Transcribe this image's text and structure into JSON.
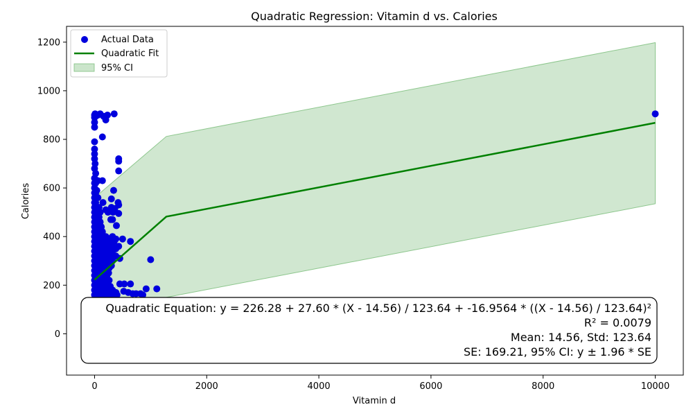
{
  "chart_data": {
    "type": "scatter",
    "title": "Quadratic Regression: Vitamin d vs. Calories",
    "xlabel": "Vitamin d",
    "ylabel": "Calories",
    "xlim": [
      -500,
      10500
    ],
    "ylim": [
      -170,
      1265
    ],
    "xticks": [
      0,
      2000,
      4000,
      6000,
      8000,
      10000
    ],
    "yticks": [
      0,
      200,
      400,
      600,
      800,
      1000,
      1200
    ],
    "grid": false,
    "legend_position": "top-left",
    "legend": [
      "Actual Data",
      "Quadratic Fit",
      "95% CI"
    ],
    "colors": {
      "scatter": "#0000dd",
      "fit": "#008000",
      "ci": "#a9d4a9"
    },
    "series": [
      {
        "name": "Actual Data",
        "type": "scatter",
        "points": [
          [
            0,
            900
          ],
          [
            0,
            890
          ],
          [
            0,
            870
          ],
          [
            0,
            850
          ],
          [
            10,
            905
          ],
          [
            20,
            895
          ],
          [
            60,
            900
          ],
          [
            100,
            905
          ],
          [
            160,
            895
          ],
          [
            200,
            880
          ],
          [
            230,
            900
          ],
          [
            350,
            905
          ],
          [
            140,
            810
          ],
          [
            0,
            790
          ],
          [
            0,
            760
          ],
          [
            0,
            740
          ],
          [
            0,
            720
          ],
          [
            10,
            700
          ],
          [
            0,
            680
          ],
          [
            20,
            660
          ],
          [
            0,
            640
          ],
          [
            0,
            620
          ],
          [
            60,
            630
          ],
          [
            140,
            630
          ],
          [
            430,
            720
          ],
          [
            430,
            710
          ],
          [
            430,
            670
          ],
          [
            340,
            590
          ],
          [
            300,
            555
          ],
          [
            150,
            540
          ],
          [
            420,
            540
          ],
          [
            430,
            530
          ],
          [
            300,
            520
          ],
          [
            360,
            515
          ],
          [
            200,
            510
          ],
          [
            240,
            500
          ],
          [
            330,
            500
          ],
          [
            430,
            495
          ],
          [
            290,
            470
          ],
          [
            320,
            470
          ],
          [
            390,
            445
          ],
          [
            20,
            460
          ],
          [
            40,
            440
          ],
          [
            100,
            430
          ],
          [
            140,
            420
          ],
          [
            60,
            410
          ],
          [
            200,
            400
          ],
          [
            300,
            395
          ],
          [
            350,
            380
          ],
          [
            500,
            390
          ],
          [
            640,
            380
          ],
          [
            430,
            360
          ],
          [
            300,
            355
          ],
          [
            50,
            350
          ],
          [
            150,
            340
          ],
          [
            250,
            330
          ],
          [
            350,
            320
          ],
          [
            450,
            310
          ],
          [
            100,
            300
          ],
          [
            200,
            290
          ],
          [
            300,
            280
          ],
          [
            50,
            270
          ],
          [
            150,
            260
          ],
          [
            250,
            250
          ],
          [
            80,
            240
          ],
          [
            180,
            230
          ],
          [
            30,
            220
          ],
          [
            130,
            210
          ],
          [
            220,
            200
          ],
          [
            450,
            205
          ],
          [
            530,
            205
          ],
          [
            640,
            205
          ],
          [
            280,
            195
          ],
          [
            200,
            185
          ],
          [
            920,
            185
          ],
          [
            1110,
            185
          ],
          [
            520,
            175
          ],
          [
            600,
            170
          ],
          [
            680,
            165
          ],
          [
            740,
            165
          ],
          [
            820,
            165
          ],
          [
            400,
            160
          ],
          [
            300,
            160
          ],
          [
            860,
            160
          ],
          [
            1000,
            305
          ],
          [
            10000,
            905
          ],
          [
            0,
            600
          ],
          [
            0,
            580
          ],
          [
            0,
            560
          ],
          [
            0,
            540
          ],
          [
            0,
            520
          ],
          [
            0,
            500
          ],
          [
            0,
            480
          ],
          [
            0,
            460
          ],
          [
            0,
            440
          ],
          [
            0,
            420
          ],
          [
            0,
            400
          ],
          [
            0,
            380
          ],
          [
            0,
            360
          ],
          [
            0,
            340
          ],
          [
            0,
            320
          ],
          [
            0,
            300
          ],
          [
            0,
            280
          ],
          [
            0,
            260
          ],
          [
            0,
            240
          ],
          [
            0,
            220
          ],
          [
            0,
            200
          ],
          [
            0,
            180
          ],
          [
            0,
            160
          ],
          [
            40,
            590
          ],
          [
            40,
            560
          ],
          [
            40,
            520
          ],
          [
            40,
            500
          ],
          [
            40,
            480
          ],
          [
            40,
            400
          ],
          [
            40,
            380
          ],
          [
            40,
            360
          ],
          [
            40,
            340
          ],
          [
            40,
            320
          ],
          [
            40,
            300
          ],
          [
            40,
            280
          ],
          [
            40,
            260
          ],
          [
            40,
            240
          ],
          [
            40,
            220
          ],
          [
            40,
            200
          ],
          [
            40,
            180
          ],
          [
            40,
            160
          ],
          [
            80,
            520
          ],
          [
            80,
            480
          ],
          [
            80,
            440
          ],
          [
            80,
            400
          ],
          [
            80,
            370
          ],
          [
            80,
            350
          ],
          [
            80,
            330
          ],
          [
            80,
            310
          ],
          [
            80,
            290
          ],
          [
            80,
            270
          ],
          [
            80,
            250
          ],
          [
            80,
            230
          ],
          [
            80,
            210
          ],
          [
            80,
            190
          ],
          [
            80,
            170
          ],
          [
            120,
            440
          ],
          [
            120,
            400
          ],
          [
            120,
            380
          ],
          [
            120,
            360
          ],
          [
            120,
            340
          ],
          [
            120,
            320
          ],
          [
            120,
            300
          ],
          [
            120,
            280
          ],
          [
            120,
            260
          ],
          [
            120,
            240
          ],
          [
            120,
            220
          ],
          [
            120,
            200
          ],
          [
            120,
            180
          ],
          [
            120,
            160
          ],
          [
            170,
            390
          ],
          [
            170,
            370
          ],
          [
            170,
            350
          ],
          [
            170,
            320
          ],
          [
            170,
            290
          ],
          [
            170,
            270
          ],
          [
            170,
            250
          ],
          [
            170,
            210
          ],
          [
            170,
            180
          ],
          [
            170,
            160
          ],
          [
            220,
            390
          ],
          [
            220,
            360
          ],
          [
            220,
            330
          ],
          [
            220,
            300
          ],
          [
            220,
            270
          ],
          [
            220,
            240
          ],
          [
            220,
            180
          ],
          [
            220,
            160
          ],
          [
            260,
            380
          ],
          [
            260,
            350
          ],
          [
            260,
            310
          ],
          [
            260,
            270
          ],
          [
            260,
            220
          ],
          [
            260,
            170
          ],
          [
            320,
            400
          ],
          [
            320,
            370
          ],
          [
            320,
            340
          ],
          [
            320,
            300
          ],
          [
            320,
            180
          ],
          [
            380,
            390
          ],
          [
            380,
            350
          ],
          [
            380,
            320
          ],
          [
            380,
            170
          ],
          [
            20,
            620
          ],
          [
            20,
            580
          ],
          [
            20,
            540
          ],
          [
            20,
            500
          ],
          [
            20,
            470
          ],
          [
            20,
            430
          ],
          [
            20,
            390
          ],
          [
            20,
            350
          ],
          [
            20,
            310
          ],
          [
            20,
            270
          ],
          [
            20,
            230
          ],
          [
            20,
            190
          ],
          [
            60,
            560
          ],
          [
            60,
            500
          ],
          [
            60,
            450
          ],
          [
            60,
            390
          ],
          [
            60,
            330
          ],
          [
            60,
            280
          ],
          [
            60,
            230
          ],
          [
            60,
            180
          ],
          [
            100,
            500
          ],
          [
            100,
            460
          ],
          [
            100,
            360
          ],
          [
            100,
            310
          ],
          [
            100,
            250
          ],
          [
            100,
            200
          ]
        ]
      },
      {
        "name": "Quadratic Fit",
        "type": "line",
        "x": [
          0,
          1280,
          10000
        ],
        "y": [
          222,
          482,
          868
        ]
      },
      {
        "name": "95% CI",
        "type": "area",
        "x": [
          0,
          1280,
          10000
        ],
        "upper": [
          560,
          812,
          1198
        ],
        "lower": [
          -110,
          150,
          535
        ]
      }
    ],
    "annotation": [
      "Quadratic Equation: y = 226.28 + 27.60 * (X - 14.56) / 123.64 + -16.9564 * ((X - 14.56) / 123.64)²",
      "R² = 0.0079",
      "Mean: 14.56, Std: 123.64",
      "SE: 169.21, 95% CI: y ± 1.96 * SE"
    ]
  }
}
